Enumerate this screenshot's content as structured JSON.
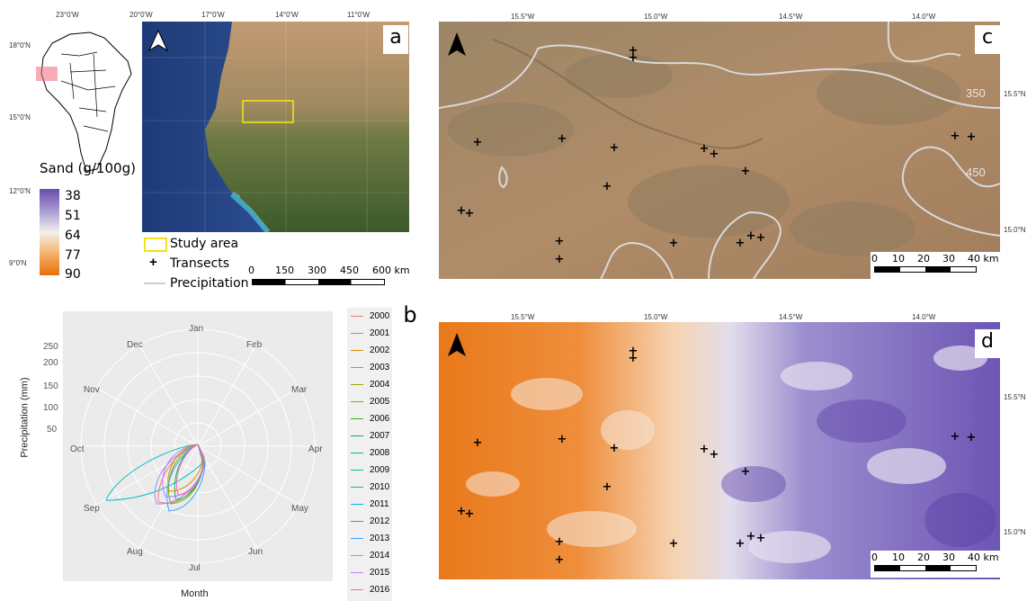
{
  "panel_a": {
    "letter": "a",
    "lon_labels": [
      "23°0'W",
      "20°0'W",
      "17°0'W",
      "14°0'W",
      "11°0'W"
    ],
    "lat_labels": [
      "18°0'N",
      "15°0'N",
      "12°0'N",
      "9°0'N"
    ],
    "legend_title": "Sand (g/100g)",
    "legend_values": [
      "38",
      "51",
      "64",
      "77",
      "90"
    ],
    "legend_items": [
      "Study area",
      "Transects",
      "Precipitation"
    ],
    "scale_labels": [
      "0",
      "150",
      "300",
      "450",
      "600 km"
    ]
  },
  "panel_b": {
    "letter": "b",
    "y_axis_label": "Precipitation (mm)",
    "x_axis_label": "Month",
    "radial_ticks": [
      "250",
      "200",
      "150",
      "100",
      "50"
    ],
    "months": [
      "Jan",
      "Feb",
      "Mar",
      "Apr",
      "May",
      "Jun",
      "Jul",
      "Aug",
      "Sep",
      "Oct",
      "Nov",
      "Dec"
    ],
    "years": [
      "2000",
      "2001",
      "2002",
      "2003",
      "2004",
      "2005",
      "2006",
      "2007",
      "2008",
      "2009",
      "2010",
      "2011",
      "2012",
      "2013",
      "2014",
      "2015",
      "2016"
    ],
    "year_colors": [
      "#F8766D",
      "#EA8331",
      "#D89000",
      "#C09B00",
      "#A3A500",
      "#7CAE00",
      "#39B600",
      "#00BB4E",
      "#00BF7D",
      "#00C1A3",
      "#00BFC4",
      "#00BAE0",
      "#00B0F6",
      "#35A2FF",
      "#9590FF",
      "#C77CFF",
      "#FF61C3"
    ]
  },
  "panel_c": {
    "letter": "c",
    "lon_labels": [
      "15.5°W",
      "15.0°W",
      "14.5°W",
      "14.0°W"
    ],
    "lat_labels": [
      "15.5°N",
      "15.0°N"
    ],
    "isohyet_labels": [
      "350",
      "450"
    ],
    "scale_labels": [
      "0",
      "10",
      "20",
      "30",
      "40 km"
    ]
  },
  "panel_d": {
    "letter": "d",
    "lon_labels": [
      "15.5°W",
      "15.0°W",
      "14.5°W",
      "14.0°W"
    ],
    "lat_labels": [
      "15.5°N",
      "15.0°N"
    ],
    "scale_labels": [
      "0",
      "10",
      "20",
      "30",
      "40 km"
    ]
  }
}
